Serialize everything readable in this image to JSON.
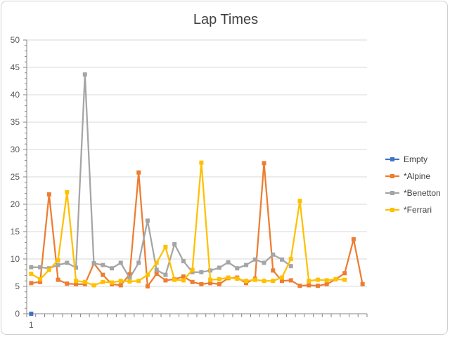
{
  "chart_data": {
    "type": "line",
    "title": "Lap Times",
    "xlabel": "",
    "ylabel": "",
    "ylim": [
      0,
      50
    ],
    "yticks": [
      0,
      5,
      10,
      15,
      20,
      25,
      30,
      35,
      40,
      45,
      50
    ],
    "xtick_labels": [
      "1"
    ],
    "x_count": 38,
    "grid": "horizontal major gridlines",
    "legend_position": "right",
    "series": [
      {
        "name": "Empty",
        "color": "#4472c4",
        "values": [
          0
        ]
      },
      {
        "name": "*Alpine",
        "color": "#ed7d31",
        "values": [
          5.6,
          5.8,
          21.8,
          6.2,
          5.5,
          5.4,
          5.4,
          9.2,
          7.1,
          5.4,
          5.2,
          7.2,
          25.8,
          5.0,
          7.3,
          6.1,
          6.3,
          6.8,
          5.8,
          5.4,
          5.6,
          5.4,
          6.5,
          6.6,
          5.6,
          6.4,
          27.5,
          7.9,
          6.0,
          6.1,
          5.1,
          5.2,
          5.1,
          5.4,
          6.3,
          7.4,
          13.6,
          5.4
        ]
      },
      {
        "name": "*Benetton",
        "color": "#a5a5a5",
        "values": [
          8.5,
          8.5,
          8.3,
          8.9,
          9.3,
          8.4,
          43.7,
          9.2,
          8.9,
          8.3,
          9.3,
          6.5,
          9.3,
          17.0,
          8.0,
          7.1,
          12.7,
          9.6,
          7.6,
          7.6,
          7.9,
          8.4,
          9.4,
          8.3,
          8.9,
          9.9,
          9.3,
          10.8,
          9.9,
          8.7
        ]
      },
      {
        "name": "*Ferrari",
        "color": "#ffc000",
        "values": [
          7.3,
          6.3,
          8.0,
          9.8,
          22.2,
          6.0,
          5.8,
          5.2,
          5.8,
          5.7,
          6.0,
          5.9,
          6.0,
          7.1,
          9.3,
          12.2,
          6.2,
          6.1,
          8.0,
          27.6,
          6.2,
          6.3,
          6.6,
          6.4,
          6.0,
          6.2,
          6.0,
          6.0,
          6.6,
          10.0,
          20.6,
          6.0,
          6.2,
          6.1,
          6.3,
          6.2
        ]
      }
    ]
  }
}
